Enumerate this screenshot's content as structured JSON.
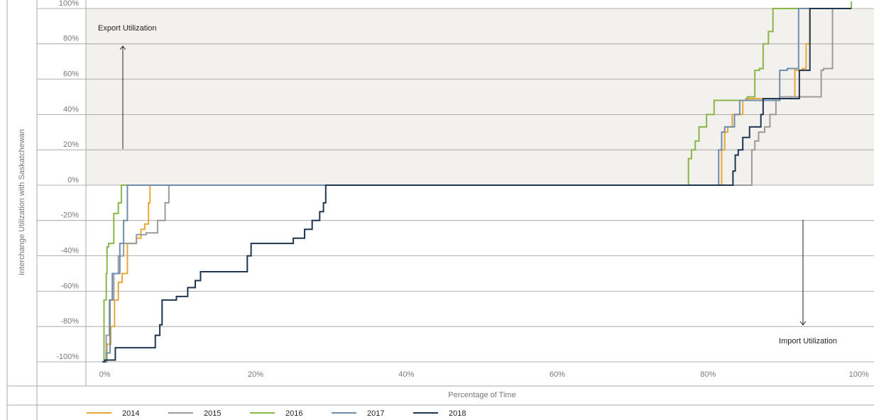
{
  "chart_data": {
    "type": "line",
    "step": true,
    "y_title": "Interchange Utilization with Saskatchewan",
    "x_title": "Percentage of Time",
    "annotations": [
      "Export Utilization",
      "Import Utilization"
    ],
    "xlim": [
      -2.5,
      102
    ],
    "ylim": [
      -100,
      100
    ],
    "xticks": [
      {
        "value": 0,
        "label": "0%"
      },
      {
        "value": 20,
        "label": "20%"
      },
      {
        "value": 40,
        "label": "40%"
      },
      {
        "value": 60,
        "label": "60%"
      },
      {
        "value": 80,
        "label": "80%"
      },
      {
        "value": 100,
        "label": "100%"
      }
    ],
    "yticks": [
      {
        "value": -100,
        "label": "-100%"
      },
      {
        "value": -80,
        "label": "-80%"
      },
      {
        "value": -60,
        "label": "-60%"
      },
      {
        "value": -40,
        "label": "-40%"
      },
      {
        "value": -20,
        "label": "-20%"
      },
      {
        "value": 0,
        "label": "0%"
      },
      {
        "value": 20,
        "label": "20%"
      },
      {
        "value": 40,
        "label": "40%"
      },
      {
        "value": 60,
        "label": "60%"
      },
      {
        "value": 80,
        "label": "80%"
      },
      {
        "value": 100,
        "label": "100%"
      }
    ],
    "grid": true,
    "legend_position": "bottom",
    "series": [
      {
        "name": "2014",
        "color": "#e8a838",
        "x": [
          -0.3,
          0.3,
          0.8,
          1.3,
          1.8,
          2.3,
          3.0,
          4.2,
          4.8,
          5.3,
          5.8,
          6.0,
          81.8,
          82.2,
          82.6,
          83.2,
          84.6,
          85.0,
          91.0,
          91.5,
          92.5,
          93.0,
          93.5,
          99.0
        ],
        "values": [
          -100,
          -90,
          -80,
          -65,
          -55,
          -50,
          -33,
          -30,
          -25,
          -22,
          -10,
          0,
          20,
          30,
          33,
          40,
          48,
          49,
          50,
          65,
          66,
          80,
          100,
          100
        ]
      },
      {
        "name": "2015",
        "color": "#9b9b9b",
        "x": [
          -0.2,
          0.2,
          0.6,
          1.2,
          1.8,
          2.5,
          4.2,
          5.5,
          7.0,
          8.0,
          8.5,
          85.8,
          86.2,
          86.7,
          87.5,
          88.2,
          89.0,
          89.5,
          95.0,
          95.3,
          96.5,
          99.0
        ],
        "values": [
          -100,
          -85,
          -65,
          -50,
          -40,
          -33,
          -28,
          -27,
          -20,
          -10,
          0,
          20,
          25,
          30,
          33,
          40,
          48,
          50,
          65,
          66,
          100,
          100
        ]
      },
      {
        "name": "2016",
        "color": "#8ab648",
        "x": [
          -0.3,
          -0.1,
          0.2,
          0.3,
          0.5,
          1.2,
          1.8,
          2.2,
          77.4,
          77.8,
          78.3,
          78.8,
          79.8,
          80.8,
          85.2,
          86.2,
          86.8,
          87.3,
          88.0,
          88.6,
          99.0
        ],
        "values": [
          -100,
          -65,
          -50,
          -35,
          -33,
          -16,
          -10,
          0,
          15,
          20,
          25,
          33,
          40,
          48,
          50,
          65,
          66,
          80,
          87,
          100,
          104
        ]
      },
      {
        "name": "2017",
        "color": "#6e8eab",
        "x": [
          -0.2,
          0.2,
          0.7,
          1.0,
          2.0,
          2.5,
          3.0,
          81.4,
          81.8,
          82.2,
          83.5,
          84.2,
          89.5,
          90.5,
          92.0,
          99.0
        ],
        "values": [
          -100,
          -95,
          -65,
          -50,
          -33,
          -20,
          0,
          20,
          30,
          33,
          40,
          48,
          65,
          66,
          100,
          100
        ]
      },
      {
        "name": "2018",
        "color": "#1f3550",
        "x": [
          -0.3,
          0,
          1.4,
          6.7,
          7.3,
          7.6,
          9.5,
          11.0,
          12.0,
          12.7,
          18.9,
          19.4,
          25.0,
          26.5,
          27.5,
          28.5,
          29.0,
          29.3,
          83.3,
          83.6,
          84.0,
          84.6,
          85.5,
          87.0,
          87.3,
          92.1,
          93.5,
          99.0
        ],
        "values": [
          -100,
          -99,
          -92,
          -85,
          -79,
          -65,
          -63,
          -58,
          -54,
          -49,
          -40,
          -33,
          -30,
          -25,
          -20,
          -15,
          -10,
          0,
          8,
          17,
          20,
          27,
          33,
          40,
          49,
          65,
          100,
          100
        ]
      }
    ]
  }
}
